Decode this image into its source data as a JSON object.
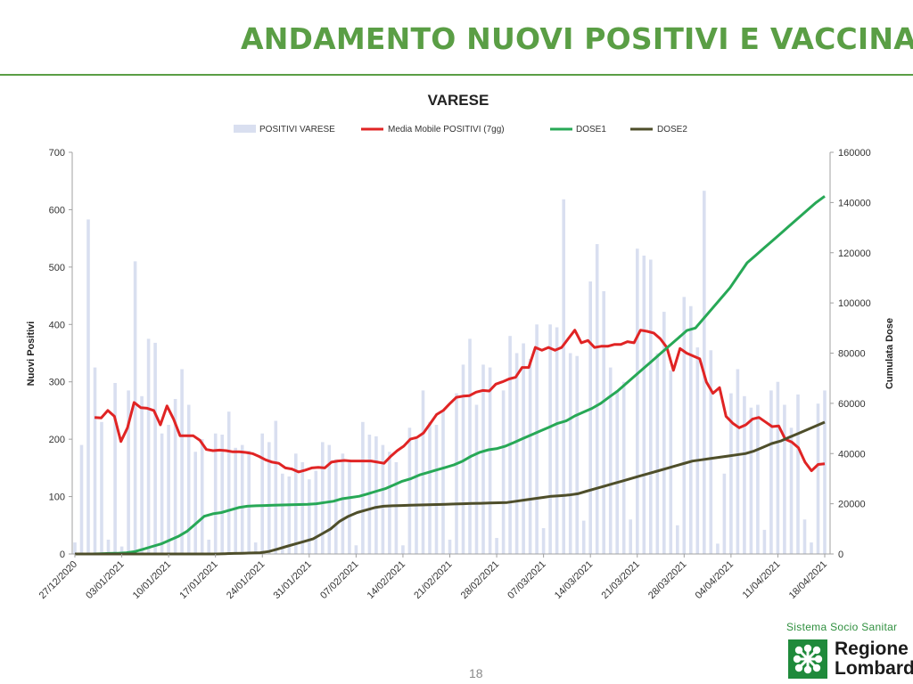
{
  "slide": {
    "title": "ANDAMENTO NUOVI POSITIVI E VACCINAT",
    "page_number": "18",
    "brand": {
      "tagline": "Sistema Socio Sanitar",
      "name_line1": "Regione",
      "name_line2": "Lombardi"
    }
  },
  "colors": {
    "title_green": "#5a9e45",
    "bars": "#d9dff0",
    "moving_average": "#e02424",
    "dose1": "#27a856",
    "dose2": "#4e4e2a"
  },
  "icons": {
    "brand_logo": "regione-lombardia-rosa-camuna-icon"
  },
  "chart_data": {
    "type": "bar",
    "title": "VARESE",
    "ylabel": "Nuovi Positivi",
    "y2label": "Cumulata Dose",
    "ylim": [
      0,
      700
    ],
    "y2lim": [
      0,
      160000
    ],
    "yticks": [
      "0",
      "100",
      "200",
      "300",
      "400",
      "500",
      "600",
      "700"
    ],
    "y2ticks": [
      "0",
      "20000",
      "40000",
      "60000",
      "80000",
      "100000",
      "120000",
      "140000",
      "160000"
    ],
    "x_start": "27/12/2020",
    "xticks": [
      "27/12/2020",
      "03/01/2021",
      "10/01/2021",
      "17/01/2021",
      "24/01/2021",
      "31/01/2021",
      "07/02/2021",
      "14/02/2021",
      "21/02/2021",
      "28/02/2021",
      "07/03/2021",
      "14/03/2021",
      "21/03/2021",
      "28/03/2021",
      "04/04/2021",
      "11/04/2021",
      "18/04/2021"
    ],
    "legend_position": "top",
    "grid": false,
    "series": [
      {
        "name": "POSITIVI VARESE",
        "type": "bar",
        "axis": "left",
        "values": [
          20,
          190,
          583,
          325,
          230,
          25,
          298,
          13,
          285,
          510,
          275,
          375,
          368,
          210,
          225,
          270,
          322,
          260,
          178,
          200,
          25,
          210,
          208,
          248,
          185,
          190,
          180,
          20,
          210,
          195,
          232,
          140,
          135,
          175,
          160,
          130,
          145,
          195,
          190,
          165,
          175,
          160,
          15,
          230,
          208,
          205,
          190,
          178,
          160,
          15,
          220,
          200,
          285,
          230,
          225,
          250,
          25,
          280,
          330,
          375,
          260,
          330,
          325,
          28,
          285,
          380,
          350,
          367,
          340,
          400,
          45,
          400,
          395,
          618,
          350,
          345,
          58,
          475,
          540,
          458,
          325,
          285,
          300,
          60,
          532,
          520,
          513,
          350,
          422,
          320,
          50,
          448,
          432,
          360,
          633,
          355,
          18,
          140,
          280,
          322,
          275,
          255,
          260,
          42,
          285,
          300,
          260,
          220,
          278,
          60,
          20,
          262,
          285
        ]
      },
      {
        "name": "Media Mobile POSITIVI (7gg)",
        "type": "line",
        "axis": "left",
        "values": [
          null,
          null,
          null,
          238,
          237,
          250,
          240,
          196,
          220,
          264,
          255,
          254,
          250,
          225,
          258,
          235,
          206,
          206,
          206,
          198,
          182,
          180,
          181,
          180,
          178,
          178,
          177,
          175,
          170,
          164,
          160,
          158,
          150,
          148,
          143,
          146,
          150,
          151,
          150,
          160,
          162,
          163,
          162,
          162,
          162,
          162,
          160,
          158,
          170,
          180,
          188,
          200,
          203,
          211,
          227,
          243,
          250,
          262,
          273,
          275,
          276,
          282,
          285,
          284,
          296,
          300,
          305,
          308,
          325,
          325,
          360,
          355,
          360,
          355,
          360,
          375,
          390,
          368,
          372,
          360,
          362,
          362,
          365,
          365,
          370,
          368,
          390,
          388,
          385,
          375,
          360,
          320,
          358,
          350,
          345,
          340,
          300,
          280,
          290,
          240,
          228,
          220,
          225,
          235,
          238,
          230,
          222,
          223,
          200,
          195,
          185,
          160,
          145,
          156,
          157
        ]
      },
      {
        "name": "DOSE1",
        "type": "line",
        "axis": "right",
        "values": [
          0,
          0,
          0,
          100,
          200,
          300,
          500,
          1000,
          2000,
          3000,
          4000,
          5500,
          7000,
          9000,
          12000,
          15000,
          16000,
          16500,
          17500,
          18500,
          19000,
          19200,
          19300,
          19400,
          19500,
          19600,
          19700,
          19800,
          20000,
          20500,
          21000,
          22000,
          22500,
          23000,
          24000,
          25000,
          26000,
          27500,
          29000,
          30000,
          31500,
          32500,
          33500,
          34500,
          35500,
          37000,
          39000,
          40500,
          41500,
          42000,
          43000,
          44500,
          46000,
          47500,
          49000,
          50500,
          52000,
          53000,
          55000,
          56500,
          58000,
          60000,
          62500,
          65000,
          68000,
          71000,
          74000,
          77000,
          80000,
          83000,
          86000,
          89000,
          90000,
          94000,
          98000,
          102000,
          106000,
          111000,
          116000,
          119000,
          122000,
          125000,
          128000,
          131000,
          134000,
          137000,
          140000,
          142500
        ]
      },
      {
        "name": "DOSE2",
        "type": "line",
        "axis": "right",
        "values": [
          0,
          0,
          0,
          0,
          0,
          0,
          0,
          0,
          0,
          0,
          0,
          0,
          0,
          0,
          0,
          0,
          0,
          100,
          200,
          300,
          400,
          500,
          1000,
          2000,
          3000,
          4000,
          5000,
          6000,
          8000,
          10000,
          13000,
          15000,
          16500,
          17500,
          18500,
          19000,
          19200,
          19300,
          19400,
          19500,
          19600,
          19700,
          19800,
          19900,
          20000,
          20100,
          20200,
          20300,
          20400,
          20500,
          21000,
          21500,
          22000,
          22500,
          23000,
          23200,
          23500,
          24000,
          25000,
          26000,
          27000,
          28000,
          29000,
          30000,
          31000,
          32000,
          33000,
          34000,
          35000,
          36000,
          37000,
          37500,
          38000,
          38500,
          39000,
          39500,
          40000,
          41000,
          42500,
          44000,
          45000,
          46500,
          48000,
          49500,
          51000,
          52500
        ]
      }
    ]
  }
}
